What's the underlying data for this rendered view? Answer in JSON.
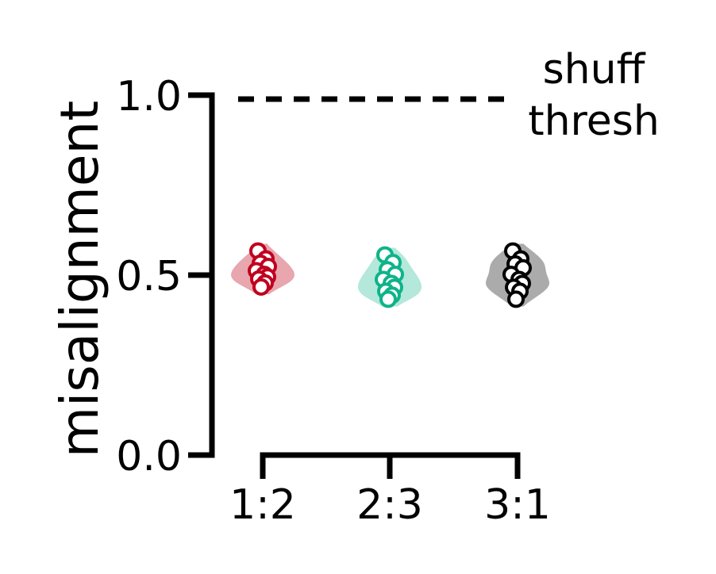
{
  "chart_data": {
    "type": "violin-strip",
    "ylabel": "misalignment",
    "ylim": [
      0.0,
      1.0
    ],
    "yticks": [
      0.0,
      0.5,
      1.0
    ],
    "ytick_labels": [
      "0.0",
      "0.5",
      "1.0"
    ],
    "categories": [
      "1:2",
      "2:3",
      "3:1"
    ],
    "threshold": {
      "value": 1.0,
      "style": "dashed",
      "label_line1": "shuff",
      "label_line2": "thresh"
    },
    "series": [
      {
        "category": "1:2",
        "color": "#c0001f",
        "violin_color": "#e8a6ae",
        "points": [
          0.567,
          0.545,
          0.533,
          0.524,
          0.512,
          0.502,
          0.495,
          0.489,
          0.478,
          0.467
        ]
      },
      {
        "category": "2:3",
        "color": "#0fb38a",
        "violin_color": "#b3e8da",
        "points": [
          0.556,
          0.535,
          0.515,
          0.502,
          0.488,
          0.477,
          0.466,
          0.455,
          0.444,
          0.433
        ]
      },
      {
        "category": "3:1",
        "color": "#000000",
        "violin_color": "#ababab",
        "points": [
          0.567,
          0.545,
          0.531,
          0.52,
          0.502,
          0.488,
          0.477,
          0.466,
          0.455,
          0.433
        ]
      }
    ],
    "grid": false,
    "legend": "none"
  }
}
